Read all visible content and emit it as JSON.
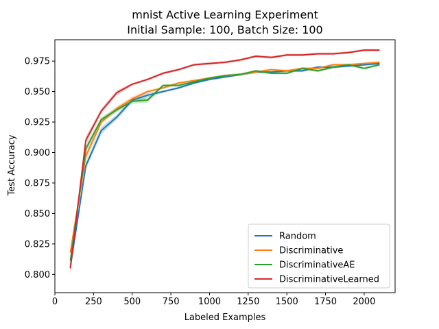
{
  "chart_data": {
    "type": "line",
    "title": "mnist Active Learning Experiment",
    "subtitle": "Initial Sample: 100, Batch Size: 100",
    "xlabel": "Labeled Examples",
    "ylabel": "Test Accuracy",
    "xlim": [
      0,
      2200
    ],
    "ylim": [
      0.785,
      0.9925
    ],
    "xticks": [
      0,
      250,
      500,
      750,
      1000,
      1250,
      1500,
      1750,
      2000
    ],
    "yticks": [
      0.8,
      0.825,
      0.85,
      0.875,
      0.9,
      0.925,
      0.95,
      0.975
    ],
    "xtick_labels": [
      "0",
      "250",
      "500",
      "750",
      "1000",
      "1250",
      "1500",
      "1750",
      "2000"
    ],
    "ytick_labels": [
      "0.800",
      "0.825",
      "0.850",
      "0.875",
      "0.900",
      "0.925",
      "0.950",
      "0.975"
    ],
    "grid": false,
    "legend_position": "lower-right",
    "x": [
      100,
      200,
      300,
      400,
      500,
      600,
      700,
      800,
      900,
      1000,
      1100,
      1200,
      1300,
      1400,
      1500,
      1600,
      1700,
      1800,
      1900,
      2000,
      2100
    ],
    "series": [
      {
        "name": "Random",
        "color": "#1f77b4",
        "values": [
          0.806,
          0.889,
          0.918,
          0.929,
          0.943,
          0.947,
          0.95,
          0.953,
          0.957,
          0.96,
          0.962,
          0.964,
          0.966,
          0.966,
          0.967,
          0.967,
          0.97,
          0.97,
          0.971,
          0.972,
          0.973
        ],
        "band": [
          0.004,
          0.003,
          0.003,
          0.002,
          0.002,
          0.002,
          0.001,
          0.001,
          0.001,
          0.001,
          0.001,
          0.001,
          0.001,
          0.001,
          0.001,
          0.001,
          0.001,
          0.001,
          0.001,
          0.001,
          0.001
        ]
      },
      {
        "name": "Discriminative",
        "color": "#ff7f0e",
        "values": [
          0.818,
          0.897,
          0.925,
          0.936,
          0.944,
          0.95,
          0.953,
          0.957,
          0.959,
          0.961,
          0.963,
          0.964,
          0.966,
          0.968,
          0.967,
          0.969,
          0.969,
          0.972,
          0.972,
          0.973,
          0.974
        ],
        "band": [
          0.003,
          0.003,
          0.002,
          0.002,
          0.002,
          0.001,
          0.001,
          0.001,
          0.001,
          0.001,
          0.001,
          0.001,
          0.001,
          0.001,
          0.001,
          0.001,
          0.001,
          0.001,
          0.001,
          0.001,
          0.001
        ]
      },
      {
        "name": "DiscriminativeAE",
        "color": "#2ca02c",
        "values": [
          0.811,
          0.903,
          0.927,
          0.935,
          0.942,
          0.943,
          0.955,
          0.955,
          0.958,
          0.961,
          0.963,
          0.964,
          0.967,
          0.965,
          0.965,
          0.969,
          0.967,
          0.97,
          0.972,
          0.969,
          0.972
        ],
        "band": [
          0.003,
          0.003,
          0.002,
          0.002,
          0.002,
          0.002,
          0.001,
          0.001,
          0.001,
          0.001,
          0.001,
          0.001,
          0.001,
          0.001,
          0.001,
          0.001,
          0.001,
          0.001,
          0.001,
          0.001,
          0.001
        ]
      },
      {
        "name": "DiscriminativeLearned",
        "color": "#d62728",
        "values": [
          0.805,
          0.91,
          0.934,
          0.949,
          0.956,
          0.96,
          0.965,
          0.968,
          0.972,
          0.973,
          0.974,
          0.976,
          0.979,
          0.978,
          0.98,
          0.98,
          0.981,
          0.981,
          0.982,
          0.984,
          0.984
        ],
        "band": [
          0.005,
          0.003,
          0.002,
          0.002,
          0.001,
          0.001,
          0.001,
          0.001,
          0.001,
          0.001,
          0.001,
          0.001,
          0.001,
          0.001,
          0.001,
          0.001,
          0.001,
          0.001,
          0.001,
          0.001,
          0.001
        ]
      }
    ]
  }
}
